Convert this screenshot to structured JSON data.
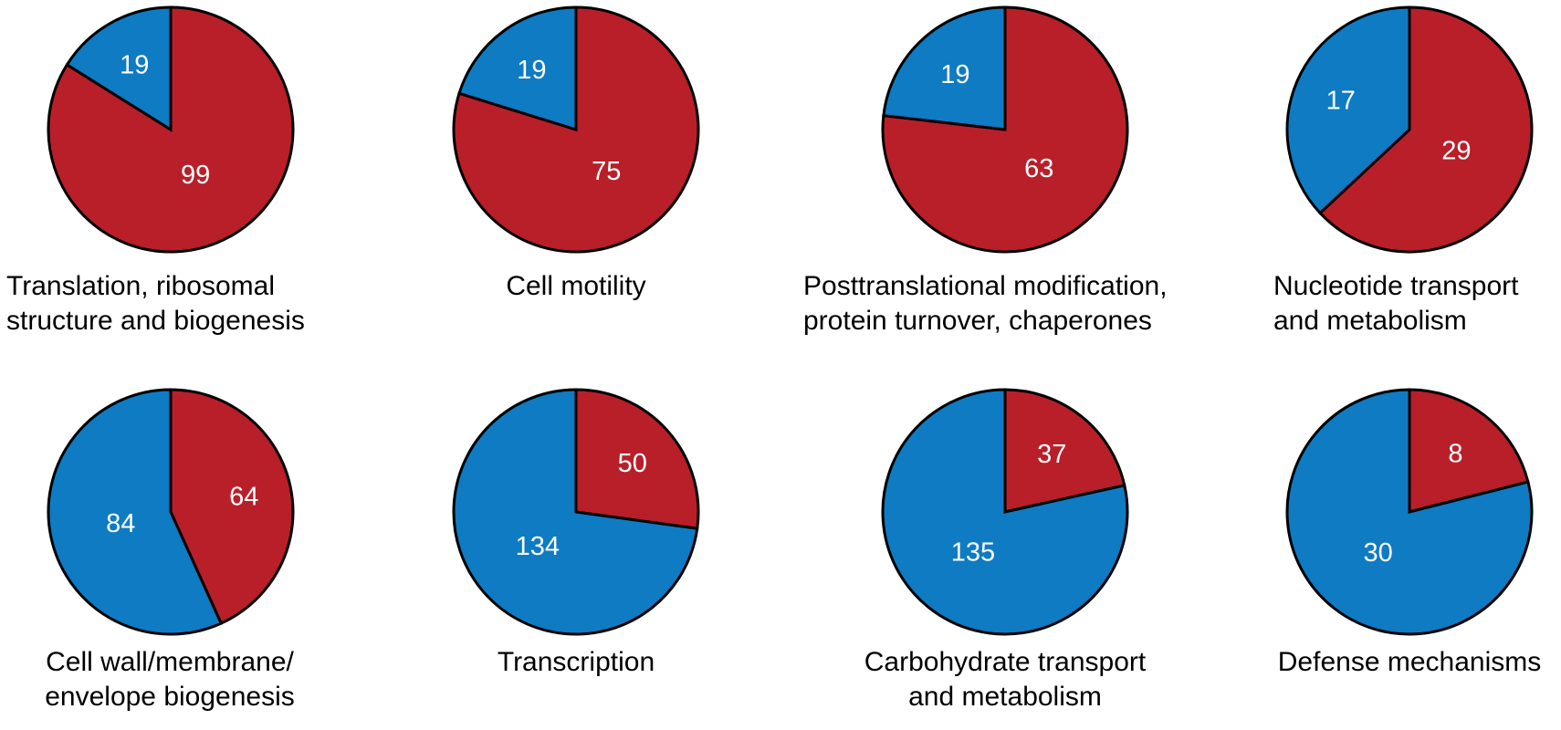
{
  "colors": {
    "red": "#B91F29",
    "blue": "#0E7BC3",
    "outline": "#000000",
    "value_text": "#ffffff"
  },
  "chart_data": [
    {
      "type": "pie",
      "title_lines": [
        "Translation, ribosomal",
        "structure and biogenesis"
      ],
      "slices": [
        {
          "color": "red",
          "value": 99
        },
        {
          "color": "blue",
          "value": 19
        }
      ]
    },
    {
      "type": "pie",
      "title_lines": [
        "Cell motility"
      ],
      "slices": [
        {
          "color": "red",
          "value": 75
        },
        {
          "color": "blue",
          "value": 19
        }
      ]
    },
    {
      "type": "pie",
      "title_lines": [
        "Posttranslational modification,",
        "protein turnover, chaperones"
      ],
      "slices": [
        {
          "color": "red",
          "value": 63
        },
        {
          "color": "blue",
          "value": 19
        }
      ]
    },
    {
      "type": "pie",
      "title_lines": [
        "Nucleotide transport",
        "and metabolism"
      ],
      "slices": [
        {
          "color": "red",
          "value": 29
        },
        {
          "color": "blue",
          "value": 17
        }
      ]
    },
    {
      "type": "pie",
      "title_lines": [
        "Cell wall/membrane/",
        "envelope biogenesis"
      ],
      "slices": [
        {
          "color": "red",
          "value": 64
        },
        {
          "color": "blue",
          "value": 84
        }
      ]
    },
    {
      "type": "pie",
      "title_lines": [
        "Transcription"
      ],
      "slices": [
        {
          "color": "red",
          "value": 50
        },
        {
          "color": "blue",
          "value": 134
        }
      ]
    },
    {
      "type": "pie",
      "title_lines": [
        "Carbohydrate transport",
        "and metabolism"
      ],
      "slices": [
        {
          "color": "red",
          "value": 37
        },
        {
          "color": "blue",
          "value": 135
        }
      ]
    },
    {
      "type": "pie",
      "title_lines": [
        "Defense mechanisms"
      ],
      "slices": [
        {
          "color": "red",
          "value": 8
        },
        {
          "color": "blue",
          "value": 30
        }
      ]
    }
  ]
}
